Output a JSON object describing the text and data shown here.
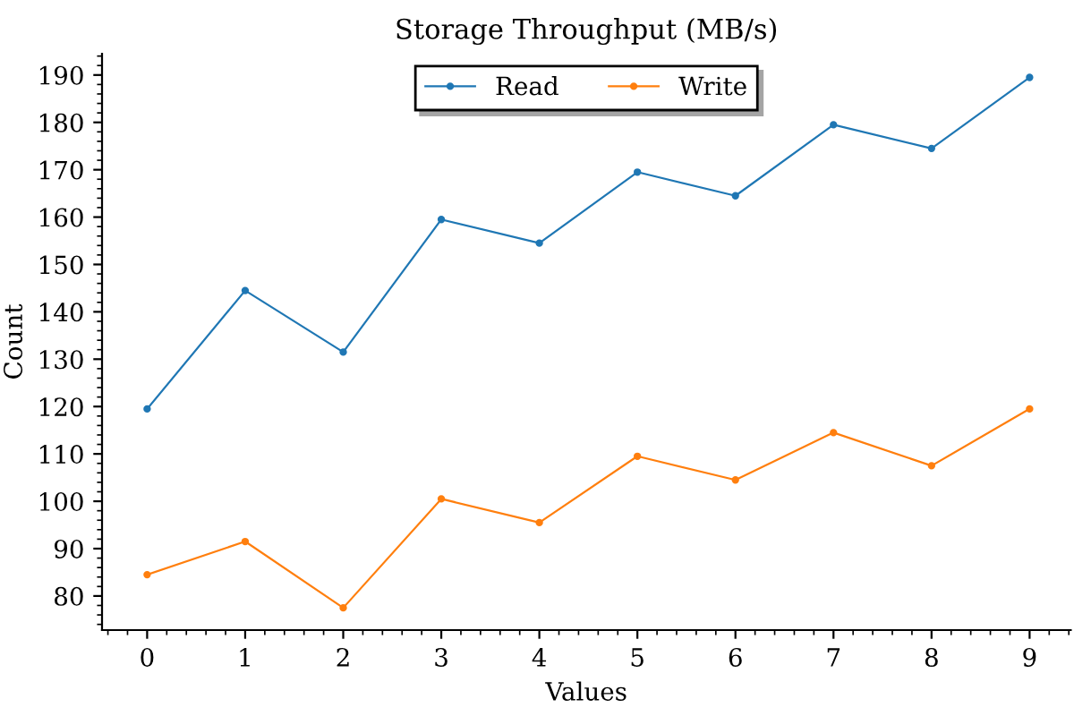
{
  "chart_data": {
    "type": "line",
    "title": "Storage Throughput (MB/s)",
    "xlabel": "Values",
    "ylabel": "Count",
    "x": [
      0,
      1,
      2,
      3,
      4,
      5,
      6,
      7,
      8,
      9
    ],
    "series": [
      {
        "name": "Read",
        "color": "#1f77b4",
        "values": [
          119.5,
          144.5,
          131.5,
          159.5,
          154.5,
          169.5,
          164.5,
          179.5,
          174.5,
          189.5
        ]
      },
      {
        "name": "Write",
        "color": "#ff7f0e",
        "values": [
          84.5,
          91.5,
          77.5,
          100.5,
          95.5,
          109.5,
          104.5,
          114.5,
          107.5,
          119.5
        ]
      }
    ],
    "xlim": [
      -0.46,
      9.42
    ],
    "xticks": [
      0,
      1,
      2,
      3,
      4,
      5,
      6,
      7,
      8,
      9
    ],
    "ylim": [
      72.8,
      194.5
    ],
    "yticks": [
      80,
      90,
      100,
      110,
      120,
      130,
      140,
      150,
      160,
      170,
      180,
      190
    ],
    "legend": "top",
    "marker": "circle",
    "line_style": "solid",
    "grid": false
  }
}
